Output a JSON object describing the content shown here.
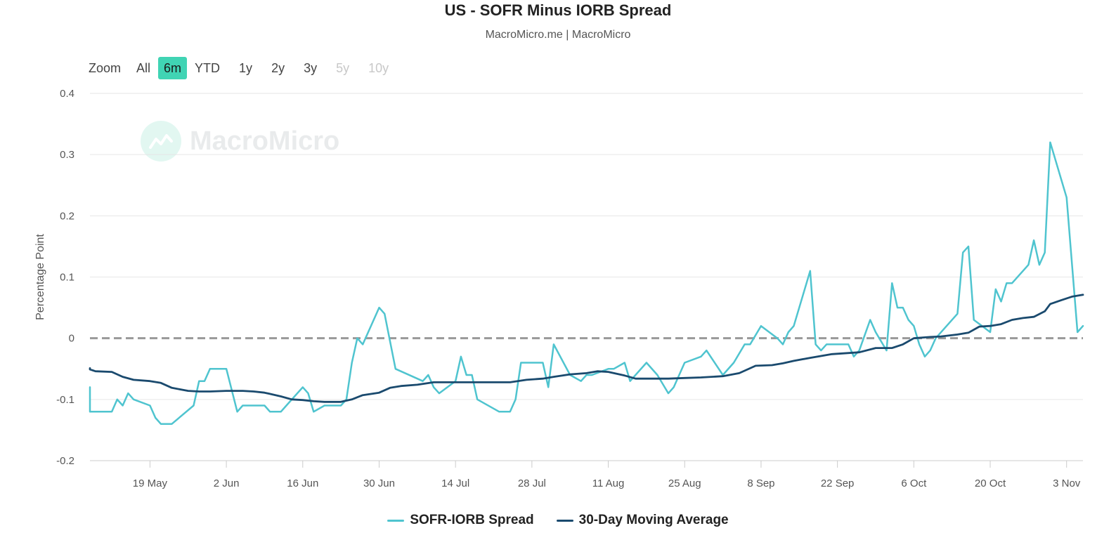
{
  "title": "US - SOFR Minus IORB Spread",
  "subtitle": "MacroMicro.me | MacroMicro",
  "zoom": {
    "label": "Zoom",
    "buttons": [
      {
        "label": "All",
        "state": "normal"
      },
      {
        "label": "6m",
        "state": "active"
      },
      {
        "label": "YTD",
        "state": "normal"
      },
      {
        "label": "1y",
        "state": "normal"
      },
      {
        "label": "2y",
        "state": "normal"
      },
      {
        "label": "3y",
        "state": "normal"
      },
      {
        "label": "5y",
        "state": "disabled"
      },
      {
        "label": "10y",
        "state": "disabled"
      }
    ]
  },
  "watermark": "MacroMicro",
  "colors": {
    "spread": "#4fc4cf",
    "moving_average": "#1a4a6e",
    "zero_line": "#999999",
    "active_zoom": "#40d4b4"
  },
  "chart_data": {
    "type": "line",
    "title": "US - SOFR Minus IORB Spread",
    "subtitle": "MacroMicro.me | MacroMicro",
    "ylabel": "Percentage Point",
    "xlabel": "",
    "ylim": [
      -0.2,
      0.4
    ],
    "yticks": [
      -0.2,
      -0.1,
      0,
      0.1,
      0.2,
      0.3,
      0.4
    ],
    "ytick_labels": [
      "-0.2",
      "-0.1",
      "0",
      "0.1",
      "0.2",
      "0.3",
      "0.4"
    ],
    "xlim": [
      "2025-05-08",
      "2025-11-06"
    ],
    "xticks": [
      "2025-05-19",
      "2025-06-02",
      "2025-06-16",
      "2025-06-30",
      "2025-07-14",
      "2025-07-28",
      "2025-08-11",
      "2025-08-25",
      "2025-09-08",
      "2025-09-22",
      "2025-10-06",
      "2025-10-20",
      "2025-11-03"
    ],
    "xtick_labels": [
      "19 May",
      "2 Jun",
      "16 Jun",
      "30 Jun",
      "14 Jul",
      "28 Jul",
      "11 Aug",
      "25 Aug",
      "8 Sep",
      "22 Sep",
      "6 Oct",
      "20 Oct",
      "3 Nov"
    ],
    "grid": true,
    "reference_line": {
      "y": 0,
      "style": "dashed"
    },
    "legend_position": "bottom-center",
    "series": [
      {
        "name": "SOFR-IORB Spread",
        "color": "#4fc4cf",
        "points": [
          [
            "2025-05-05",
            -0.08
          ],
          [
            "2025-05-06",
            -0.1
          ],
          [
            "2025-05-08",
            -0.12
          ],
          [
            "2025-05-09",
            -0.12
          ],
          [
            "2025-05-12",
            -0.12
          ],
          [
            "2025-05-13",
            -0.1
          ],
          [
            "2025-05-14",
            -0.11
          ],
          [
            "2025-05-15",
            -0.09
          ],
          [
            "2025-05-16",
            -0.1
          ],
          [
            "2025-05-19",
            -0.11
          ],
          [
            "2025-05-20",
            -0.13
          ],
          [
            "2025-05-21",
            -0.14
          ],
          [
            "2025-05-23",
            -0.14
          ],
          [
            "2025-05-27",
            -0.11
          ],
          [
            "2025-05-28",
            -0.07
          ],
          [
            "2025-05-29",
            -0.07
          ],
          [
            "2025-05-30",
            -0.05
          ],
          [
            "2025-06-02",
            -0.05
          ],
          [
            "2025-06-04",
            -0.12
          ],
          [
            "2025-06-05",
            -0.11
          ],
          [
            "2025-06-06",
            -0.11
          ],
          [
            "2025-06-09",
            -0.11
          ],
          [
            "2025-06-10",
            -0.12
          ],
          [
            "2025-06-12",
            -0.12
          ],
          [
            "2025-06-13",
            -0.11
          ],
          [
            "2025-06-16",
            -0.08
          ],
          [
            "2025-06-17",
            -0.09
          ],
          [
            "2025-06-18",
            -0.12
          ],
          [
            "2025-06-20",
            -0.11
          ],
          [
            "2025-06-23",
            -0.11
          ],
          [
            "2025-06-24",
            -0.1
          ],
          [
            "2025-06-25",
            -0.04
          ],
          [
            "2025-06-26",
            0.0
          ],
          [
            "2025-06-27",
            -0.01
          ],
          [
            "2025-06-30",
            0.05
          ],
          [
            "2025-07-01",
            0.04
          ],
          [
            "2025-07-03",
            -0.05
          ],
          [
            "2025-07-08",
            -0.07
          ],
          [
            "2025-07-09",
            -0.06
          ],
          [
            "2025-07-10",
            -0.08
          ],
          [
            "2025-07-11",
            -0.09
          ],
          [
            "2025-07-14",
            -0.07
          ],
          [
            "2025-07-15",
            -0.03
          ],
          [
            "2025-07-16",
            -0.06
          ],
          [
            "2025-07-17",
            -0.06
          ],
          [
            "2025-07-18",
            -0.1
          ],
          [
            "2025-07-22",
            -0.12
          ],
          [
            "2025-07-24",
            -0.12
          ],
          [
            "2025-07-25",
            -0.1
          ],
          [
            "2025-07-26",
            -0.04
          ],
          [
            "2025-07-30",
            -0.04
          ],
          [
            "2025-07-31",
            -0.08
          ],
          [
            "2025-08-01",
            -0.01
          ],
          [
            "2025-08-04",
            -0.06
          ],
          [
            "2025-08-06",
            -0.07
          ],
          [
            "2025-08-07",
            -0.06
          ],
          [
            "2025-08-08",
            -0.06
          ],
          [
            "2025-08-11",
            -0.05
          ],
          [
            "2025-08-12",
            -0.05
          ],
          [
            "2025-08-14",
            -0.04
          ],
          [
            "2025-08-15",
            -0.07
          ],
          [
            "2025-08-18",
            -0.04
          ],
          [
            "2025-08-20",
            -0.06
          ],
          [
            "2025-08-22",
            -0.09
          ],
          [
            "2025-08-23",
            -0.08
          ],
          [
            "2025-08-25",
            -0.04
          ],
          [
            "2025-08-28",
            -0.03
          ],
          [
            "2025-08-29",
            -0.02
          ],
          [
            "2025-09-01",
            -0.06
          ],
          [
            "2025-09-03",
            -0.04
          ],
          [
            "2025-09-05",
            -0.01
          ],
          [
            "2025-09-06",
            -0.01
          ],
          [
            "2025-09-08",
            0.02
          ],
          [
            "2025-09-11",
            0.0
          ],
          [
            "2025-09-12",
            -0.01
          ],
          [
            "2025-09-13",
            0.01
          ],
          [
            "2025-09-14",
            0.02
          ],
          [
            "2025-09-17",
            0.11
          ],
          [
            "2025-09-18",
            -0.01
          ],
          [
            "2025-09-19",
            -0.02
          ],
          [
            "2025-09-20",
            -0.01
          ],
          [
            "2025-09-24",
            -0.01
          ],
          [
            "2025-09-25",
            -0.03
          ],
          [
            "2025-09-26",
            -0.02
          ],
          [
            "2025-09-28",
            0.03
          ],
          [
            "2025-09-29",
            0.01
          ],
          [
            "2025-10-01",
            -0.02
          ],
          [
            "2025-10-02",
            0.09
          ],
          [
            "2025-10-03",
            0.05
          ],
          [
            "2025-10-04",
            0.05
          ],
          [
            "2025-10-05",
            0.03
          ],
          [
            "2025-10-06",
            0.02
          ],
          [
            "2025-10-07",
            -0.01
          ],
          [
            "2025-10-08",
            -0.03
          ],
          [
            "2025-10-09",
            -0.02
          ],
          [
            "2025-10-10",
            0.0
          ],
          [
            "2025-10-14",
            0.04
          ],
          [
            "2025-10-15",
            0.14
          ],
          [
            "2025-10-16",
            0.15
          ],
          [
            "2025-10-17",
            0.03
          ],
          [
            "2025-10-20",
            0.01
          ],
          [
            "2025-10-21",
            0.08
          ],
          [
            "2025-10-22",
            0.06
          ],
          [
            "2025-10-23",
            0.09
          ],
          [
            "2025-10-24",
            0.09
          ],
          [
            "2025-10-27",
            0.12
          ],
          [
            "2025-10-28",
            0.16
          ],
          [
            "2025-10-29",
            0.12
          ],
          [
            "2025-10-30",
            0.14
          ],
          [
            "2025-10-31",
            0.32
          ],
          [
            "2025-11-03",
            0.23
          ],
          [
            "2025-11-05",
            0.01
          ],
          [
            "2025-11-06",
            0.02
          ]
        ]
      },
      {
        "name": "30-Day Moving Average",
        "color": "#1a4a6e",
        "points": [
          [
            "2025-05-05",
            -0.049
          ],
          [
            "2025-05-07",
            -0.051
          ],
          [
            "2025-05-09",
            -0.054
          ],
          [
            "2025-05-12",
            -0.055
          ],
          [
            "2025-05-14",
            -0.063
          ],
          [
            "2025-05-16",
            -0.068
          ],
          [
            "2025-05-19",
            -0.07
          ],
          [
            "2025-05-21",
            -0.073
          ],
          [
            "2025-05-23",
            -0.081
          ],
          [
            "2025-05-26",
            -0.086
          ],
          [
            "2025-05-28",
            -0.087
          ],
          [
            "2025-05-30",
            -0.087
          ],
          [
            "2025-06-02",
            -0.086
          ],
          [
            "2025-06-05",
            -0.086
          ],
          [
            "2025-06-07",
            -0.087
          ],
          [
            "2025-06-09",
            -0.089
          ],
          [
            "2025-06-12",
            -0.095
          ],
          [
            "2025-06-14",
            -0.1
          ],
          [
            "2025-06-16",
            -0.101
          ],
          [
            "2025-06-18",
            -0.103
          ],
          [
            "2025-06-20",
            -0.104
          ],
          [
            "2025-06-23",
            -0.104
          ],
          [
            "2025-06-25",
            -0.1
          ],
          [
            "2025-06-27",
            -0.093
          ],
          [
            "2025-06-30",
            -0.089
          ],
          [
            "2025-07-02",
            -0.081
          ],
          [
            "2025-07-04",
            -0.078
          ],
          [
            "2025-07-07",
            -0.076
          ],
          [
            "2025-07-10",
            -0.072
          ],
          [
            "2025-07-14",
            -0.072
          ],
          [
            "2025-07-17",
            -0.072
          ],
          [
            "2025-07-21",
            -0.072
          ],
          [
            "2025-07-24",
            -0.072
          ],
          [
            "2025-07-27",
            -0.068
          ],
          [
            "2025-07-30",
            -0.066
          ],
          [
            "2025-08-01",
            -0.063
          ],
          [
            "2025-08-04",
            -0.059
          ],
          [
            "2025-08-07",
            -0.057
          ],
          [
            "2025-08-09",
            -0.054
          ],
          [
            "2025-08-11",
            -0.055
          ],
          [
            "2025-08-14",
            -0.061
          ],
          [
            "2025-08-16",
            -0.066
          ],
          [
            "2025-08-19",
            -0.066
          ],
          [
            "2025-08-22",
            -0.066
          ],
          [
            "2025-08-25",
            -0.065
          ],
          [
            "2025-08-28",
            -0.064
          ],
          [
            "2025-09-01",
            -0.062
          ],
          [
            "2025-09-04",
            -0.057
          ],
          [
            "2025-09-07",
            -0.045
          ],
          [
            "2025-09-10",
            -0.044
          ],
          [
            "2025-09-12",
            -0.041
          ],
          [
            "2025-09-14",
            -0.037
          ],
          [
            "2025-09-17",
            -0.032
          ],
          [
            "2025-09-21",
            -0.026
          ],
          [
            "2025-09-26",
            -0.023
          ],
          [
            "2025-09-29",
            -0.016
          ],
          [
            "2025-10-02",
            -0.016
          ],
          [
            "2025-10-04",
            -0.01
          ],
          [
            "2025-10-06",
            0.0
          ],
          [
            "2025-10-09",
            0.002
          ],
          [
            "2025-10-11",
            0.003
          ],
          [
            "2025-10-14",
            0.006
          ],
          [
            "2025-10-16",
            0.009
          ],
          [
            "2025-10-18",
            0.019
          ],
          [
            "2025-10-20",
            0.02
          ],
          [
            "2025-10-22",
            0.023
          ],
          [
            "2025-10-24",
            0.03
          ],
          [
            "2025-10-26",
            0.033
          ],
          [
            "2025-10-28",
            0.035
          ],
          [
            "2025-10-30",
            0.044
          ],
          [
            "2025-10-31",
            0.056
          ],
          [
            "2025-11-02",
            0.062
          ],
          [
            "2025-11-04",
            0.068
          ],
          [
            "2025-11-06",
            0.071
          ]
        ]
      }
    ]
  }
}
